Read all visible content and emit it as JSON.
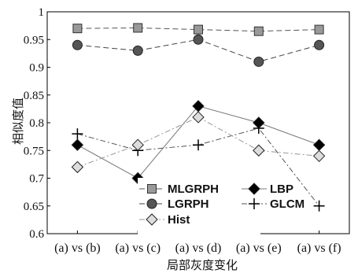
{
  "chart_data": {
    "type": "line",
    "title": "",
    "xlabel": "局部灰度变化",
    "ylabel": "相似度值",
    "categories": [
      "(a) vs (b)",
      "(a) vs (c)",
      "(a) vs (d)",
      "(a) vs (e)",
      "(a) vs (f)"
    ],
    "ylim": [
      0.6,
      1.0
    ],
    "yticks": [
      "0.6",
      "0.65",
      "0.7",
      "0.75",
      "0.8",
      "0.85",
      "0.9",
      "0.95",
      "1"
    ],
    "grid": false,
    "legend_position": "bottom-center",
    "series": [
      {
        "name": "MLGRPH",
        "values": [
          0.97,
          0.971,
          0.968,
          0.965,
          0.968
        ],
        "color": "#555555",
        "marker": "square",
        "marker_fill": "#999999",
        "dash": "dashed"
      },
      {
        "name": "LBP",
        "values": [
          0.76,
          0.7,
          0.83,
          0.8,
          0.76
        ],
        "color": "#777777",
        "marker": "diamond",
        "marker_fill": "#000000",
        "dash": "solid"
      },
      {
        "name": "LGRPH",
        "values": [
          0.94,
          0.93,
          0.95,
          0.91,
          0.94
        ],
        "color": "#444444",
        "marker": "circle",
        "marker_fill": "#555555",
        "dash": "dashed"
      },
      {
        "name": "GLCM",
        "values": [
          0.78,
          0.75,
          0.76,
          0.79,
          0.65
        ],
        "color": "#555555",
        "marker": "plus",
        "marker_fill": "#000000",
        "dash": "dashdot"
      },
      {
        "name": "Hist",
        "values": [
          0.72,
          0.76,
          0.81,
          0.75,
          0.74
        ],
        "color": "#999999",
        "marker": "diamond",
        "marker_fill": "#dddddd",
        "dash": "dashdot"
      }
    ]
  }
}
